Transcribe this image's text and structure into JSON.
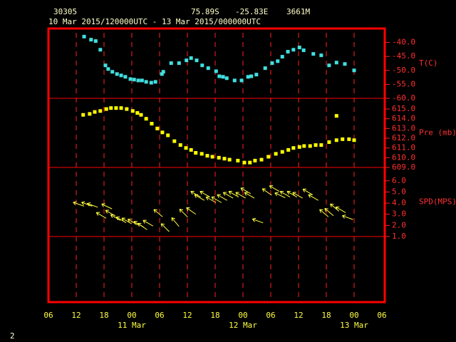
{
  "header": {
    "station": "30305",
    "lat": "75.89S",
    "lon": "-25.83E",
    "elevation": "3661M",
    "period": "10 Mar 2015/120000UTC - 13 Mar 2015/000000UTC"
  },
  "footer": {
    "page": "2"
  },
  "chart_data": [
    {
      "type": "scatter",
      "axis_label": "T(C)",
      "color": "#40e0e0",
      "xlim": [
        0,
        72
      ],
      "ylim": [
        -60,
        -35
      ],
      "yticks": [
        {
          "value": -40,
          "label": "-40.0"
        },
        {
          "value": -45,
          "label": "-45.0"
        },
        {
          "value": -50,
          "label": "-50.0"
        },
        {
          "value": -55,
          "label": "-55.0"
        },
        {
          "value": -60,
          "label": "-60.0"
        }
      ],
      "x": [
        7.7,
        9.2,
        10.2,
        11.2,
        12.3,
        12.9,
        13.8,
        14.8,
        15.7,
        16.6,
        17.7,
        18.5,
        19.4,
        20.2,
        21.1,
        22.2,
        23.1,
        24.5,
        24.8,
        26.5,
        28.2,
        29.8,
        30.8,
        32,
        33.2,
        34.5,
        36.2,
        36.9,
        37.7,
        38.5,
        40.2,
        41.7,
        43.1,
        43.8,
        44.9,
        46.8,
        48.3,
        49.5,
        50.5,
        51.7,
        52.9,
        54.2,
        55.1,
        57.2,
        58.9,
        60.6,
        62.2,
        64,
        66
      ],
      "values": [
        -37.9,
        -39,
        -39.5,
        -42.6,
        -48.2,
        -49.5,
        -50.5,
        -51.3,
        -51.8,
        -52.3,
        -53.1,
        -53.3,
        -53.6,
        -53.6,
        -54.1,
        -54.4,
        -54.1,
        -51.3,
        -50.5,
        -47.4,
        -47.4,
        -46.4,
        -45.6,
        -46.4,
        -48.2,
        -49.2,
        -50.3,
        -52.1,
        -52.3,
        -52.8,
        -53.6,
        -53.6,
        -52.3,
        -52.1,
        -51.5,
        -49.2,
        -47.4,
        -46.7,
        -45.1,
        -43.3,
        -42.6,
        -41.8,
        -42.8,
        -44.1,
        -44.6,
        -48.2,
        -47.2,
        -47.7,
        -50
      ]
    },
    {
      "type": "scatter",
      "axis_label": "Pre (mb)",
      "color": "#ffff00",
      "xlim": [
        0,
        72
      ],
      "ylim": [
        609,
        616.1
      ],
      "yticks": [
        {
          "value": 615,
          "label": "615.0"
        },
        {
          "value": 614,
          "label": "614.0"
        },
        {
          "value": 613,
          "label": "613.0"
        },
        {
          "value": 612,
          "label": "612.0"
        },
        {
          "value": 611,
          "label": "611.0"
        },
        {
          "value": 610,
          "label": "610.0"
        },
        {
          "value": 609,
          "label": "609.0"
        }
      ],
      "x": [
        7.5,
        8.9,
        10,
        11.2,
        12.5,
        13.5,
        14.6,
        15.7,
        16.9,
        18.2,
        19.2,
        20,
        21.1,
        22.3,
        23.5,
        24.6,
        25.8,
        27.2,
        28.5,
        29.7,
        30.8,
        31.8,
        33.1,
        34.3,
        35.4,
        36.8,
        38,
        39.1,
        40.9,
        42.3,
        43.5,
        44.6,
        46,
        47.5,
        49.1,
        50.5,
        51.8,
        52.9,
        54.2,
        55.2,
        56.5,
        57.7,
        58.9,
        60.6,
        62.2,
        62.2,
        63.5,
        64.9,
        66
      ],
      "values": [
        614.4,
        614.5,
        614.7,
        614.8,
        615,
        615.1,
        615.1,
        615.1,
        615,
        614.8,
        614.6,
        614.4,
        614,
        613.5,
        613,
        612.6,
        612.3,
        611.7,
        611.3,
        611,
        610.8,
        610.5,
        610.4,
        610.2,
        610.1,
        610,
        609.9,
        609.8,
        609.7,
        609.5,
        609.5,
        609.7,
        609.8,
        610.1,
        610.4,
        610.6,
        610.8,
        611,
        611.1,
        611.2,
        611.2,
        611.3,
        611.3,
        611.6,
        614.3,
        611.8,
        611.9,
        611.9,
        611.8
      ]
    },
    {
      "type": "vector",
      "axis_label": "SPD(MPS)",
      "color": "#ffff40",
      "xlim": [
        0,
        72
      ],
      "ylim": [
        1,
        7.2
      ],
      "yticks": [
        {
          "value": 6,
          "label": "6.0"
        },
        {
          "value": 5,
          "label": "5.0"
        },
        {
          "value": 4,
          "label": "4.0"
        },
        {
          "value": 3,
          "label": "3.0"
        },
        {
          "value": 2,
          "label": "2.0"
        },
        {
          "value": 1,
          "label": "1.0"
        }
      ],
      "xticks": [
        {
          "value": 0,
          "label": "06"
        },
        {
          "value": 6,
          "label": "12"
        },
        {
          "value": 12,
          "label": "18"
        },
        {
          "value": 18,
          "label": "00"
        },
        {
          "value": 24,
          "label": "06"
        },
        {
          "value": 30,
          "label": "12"
        },
        {
          "value": 36,
          "label": "18"
        },
        {
          "value": 42,
          "label": "00"
        },
        {
          "value": 48,
          "label": "06"
        },
        {
          "value": 54,
          "label": "12"
        },
        {
          "value": 60,
          "label": "18"
        },
        {
          "value": 66,
          "label": "00"
        },
        {
          "value": 72,
          "label": "06"
        }
      ],
      "date_labels": [
        {
          "value": 18,
          "label": "11 Mar"
        },
        {
          "value": 42,
          "label": "12 Mar"
        },
        {
          "value": 66,
          "label": "13 Mar"
        }
      ],
      "x": [
        6.5,
        8.3,
        9.5,
        11.4,
        12.6,
        13.4,
        14.5,
        15.7,
        16.9,
        18.2,
        19.5,
        20.3,
        21.5,
        23.7,
        25.2,
        27.4,
        29.2,
        30.8,
        31.8,
        32.6,
        33.8,
        35.1,
        36.3,
        37.5,
        38.8,
        40,
        41.5,
        42.6,
        43.4,
        45.2,
        47.2,
        48.8,
        50,
        51.1,
        52.6,
        53.8,
        56,
        57.2,
        59.5,
        60.6,
        61.8,
        63.1,
        64.6
      ],
      "values": [
        3.9,
        3.9,
        3.8,
        2.9,
        3.7,
        3.1,
        2.7,
        2.5,
        2.4,
        2.3,
        2.1,
        1.9,
        2.2,
        3.1,
        1.8,
        2.3,
        3.1,
        3.3,
        4.8,
        4.5,
        4.8,
        4.3,
        4.3,
        4.5,
        4.7,
        4.8,
        4.7,
        5.1,
        4.7,
        2.4,
        5,
        5.3,
        4.7,
        4.8,
        4.8,
        4.7,
        5,
        4.5,
        3.1,
        3.2,
        3.6,
        3.4,
        2.7
      ],
      "directions": [
        290,
        290,
        290,
        300,
        295,
        300,
        300,
        300,
        300,
        300,
        300,
        305,
        300,
        310,
        315,
        320,
        315,
        305,
        300,
        300,
        300,
        300,
        300,
        300,
        300,
        300,
        300,
        300,
        300,
        290,
        305,
        300,
        295,
        300,
        300,
        300,
        300,
        300,
        310,
        310,
        310,
        300,
        290
      ]
    }
  ]
}
